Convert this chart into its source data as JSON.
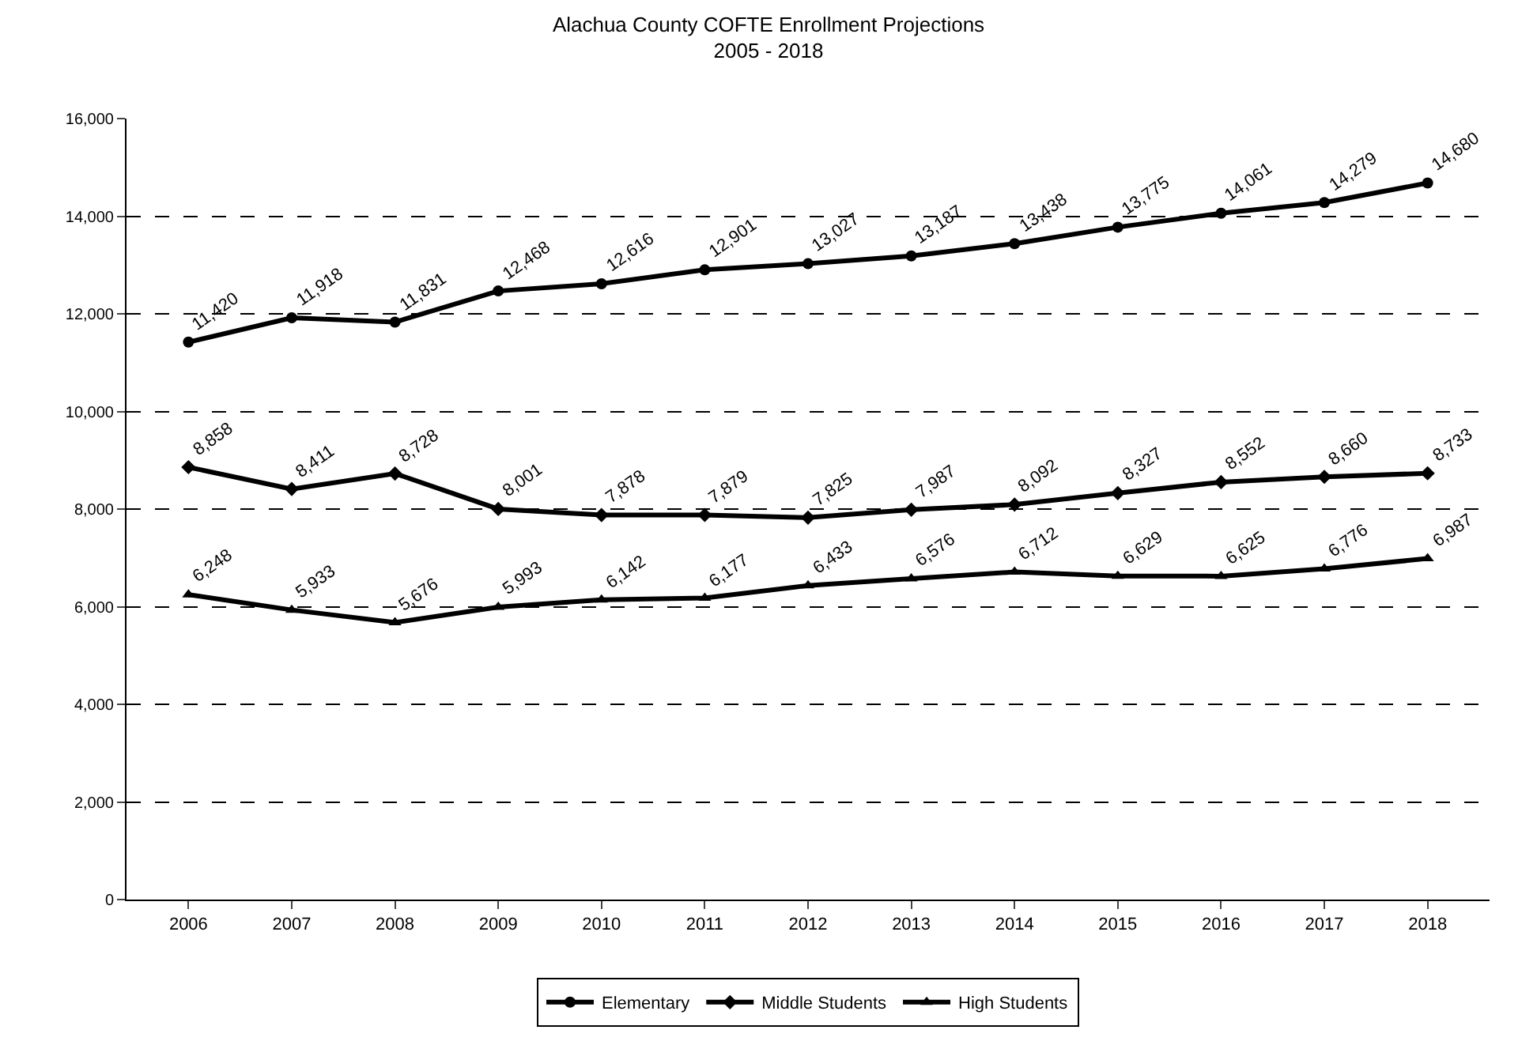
{
  "chart_data": {
    "type": "line",
    "title": "Alachua County COFTE Enrollment Projections\n2005 - 2018",
    "categories": [
      "2006",
      "2007",
      "2008",
      "2009",
      "2010",
      "2011",
      "2012",
      "2013",
      "2014",
      "2015",
      "2016",
      "2017",
      "2018"
    ],
    "series": [
      {
        "name": "Elementary",
        "color": "#000000",
        "marker": "circle",
        "values": [
          11420,
          11918,
          11831,
          12468,
          12616,
          12901,
          13027,
          13187,
          13438,
          13775,
          14061,
          14279,
          14680
        ],
        "value_labels": [
          "11,420",
          "11,918",
          "11,831",
          "12,468",
          "12,616",
          "12,901",
          "13,027",
          "13,187",
          "13,438",
          "13,775",
          "14,061",
          "14,279",
          "14,680"
        ]
      },
      {
        "name": "Middle Students",
        "color": "#000000",
        "marker": "diamond",
        "values": [
          8858,
          8411,
          8728,
          8001,
          7878,
          7879,
          7825,
          7987,
          8092,
          8327,
          8552,
          8660,
          8733
        ],
        "value_labels": [
          "8,858",
          "8,411",
          "8,728",
          "8,001",
          "7,878",
          "7,879",
          "7,825",
          "7,987",
          "8,092",
          "8,327",
          "8,552",
          "8,660",
          "8,733"
        ]
      },
      {
        "name": "High Students",
        "color": "#000000",
        "marker": "triangle",
        "values": [
          6248,
          5933,
          5676,
          5993,
          6142,
          6177,
          6433,
          6576,
          6712,
          6629,
          6625,
          6776,
          6987
        ],
        "value_labels": [
          "6,248",
          "5,933",
          "5,676",
          "5,993",
          "6,142",
          "6,177",
          "6,433",
          "6,576",
          "6,712",
          "6,629",
          "6,625",
          "6,776",
          "6,987"
        ]
      }
    ],
    "ylim": [
      0,
      16000
    ],
    "yticks": [
      0,
      {
        "value": 2000,
        "label": "2,000"
      },
      {
        "value": 4000,
        "label": "4,000"
      },
      {
        "value": 6000,
        "label": "6,000"
      },
      {
        "value": 8000,
        "label": "8,000"
      },
      {
        "value": 10000,
        "label": "10,000"
      },
      {
        "value": 12000,
        "label": "12,000"
      },
      {
        "value": 14000,
        "label": "14,000"
      },
      {
        "value": 16000,
        "label": "16,000"
      }
    ],
    "grid": "y",
    "legend": "bottom",
    "line_style": "solid"
  }
}
